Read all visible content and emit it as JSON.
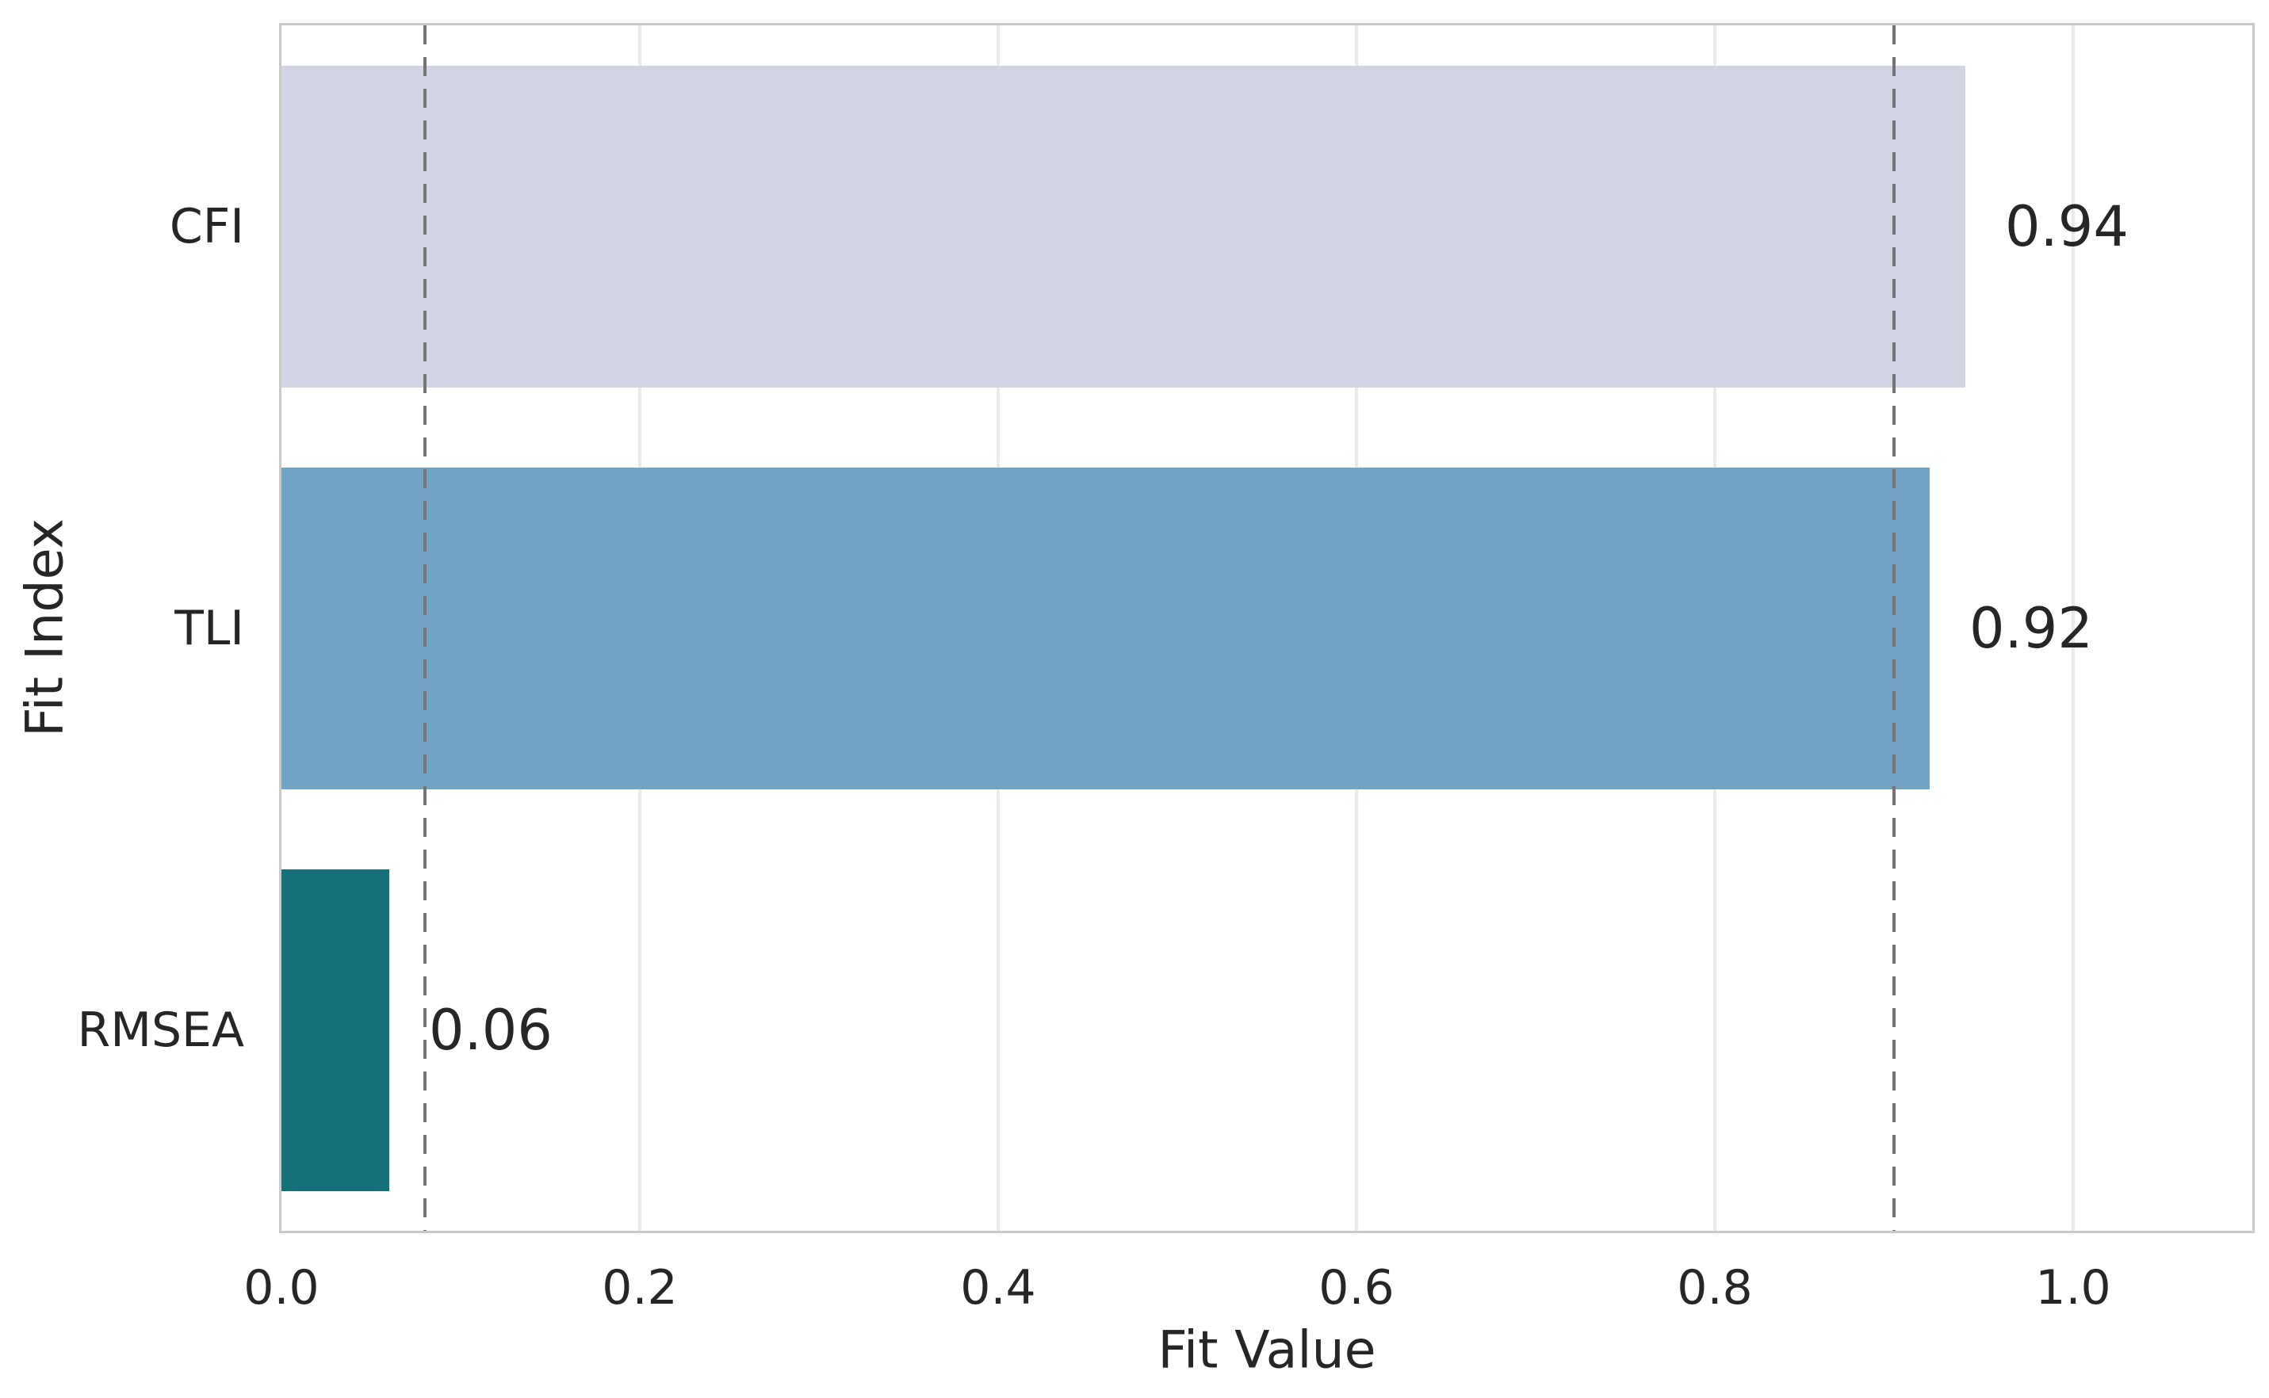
{
  "chart_data": {
    "type": "bar",
    "orientation": "horizontal",
    "title": "",
    "xlabel": "Fit Value",
    "ylabel": "Fit Index",
    "categories": [
      "CFI",
      "TLI",
      "RMSEA"
    ],
    "values": [
      0.94,
      0.92,
      0.06
    ],
    "bar_labels": [
      "0.94",
      "0.92",
      "0.06"
    ],
    "bar_colors": [
      "#d3d4e3",
      "#72a3c2",
      "#147179"
    ],
    "xlim": [
      0,
      1.1
    ],
    "x_ticks": [
      0.0,
      0.2,
      0.4,
      0.6,
      0.8,
      1.0
    ],
    "x_tick_labels": [
      "0.0",
      "0.2",
      "0.4",
      "0.6",
      "0.8",
      "1.0"
    ],
    "reference_lines": [
      {
        "value": 0.08,
        "style": "dashed",
        "color": "#757575"
      },
      {
        "value": 0.9,
        "style": "dashed",
        "color": "#757575"
      }
    ],
    "grid": "vertical",
    "legend": null,
    "plot_background": "#ffffff",
    "gridline_color": "#eaeaea",
    "spine_color": "#c9c9c9",
    "text_color": "#262626"
  }
}
